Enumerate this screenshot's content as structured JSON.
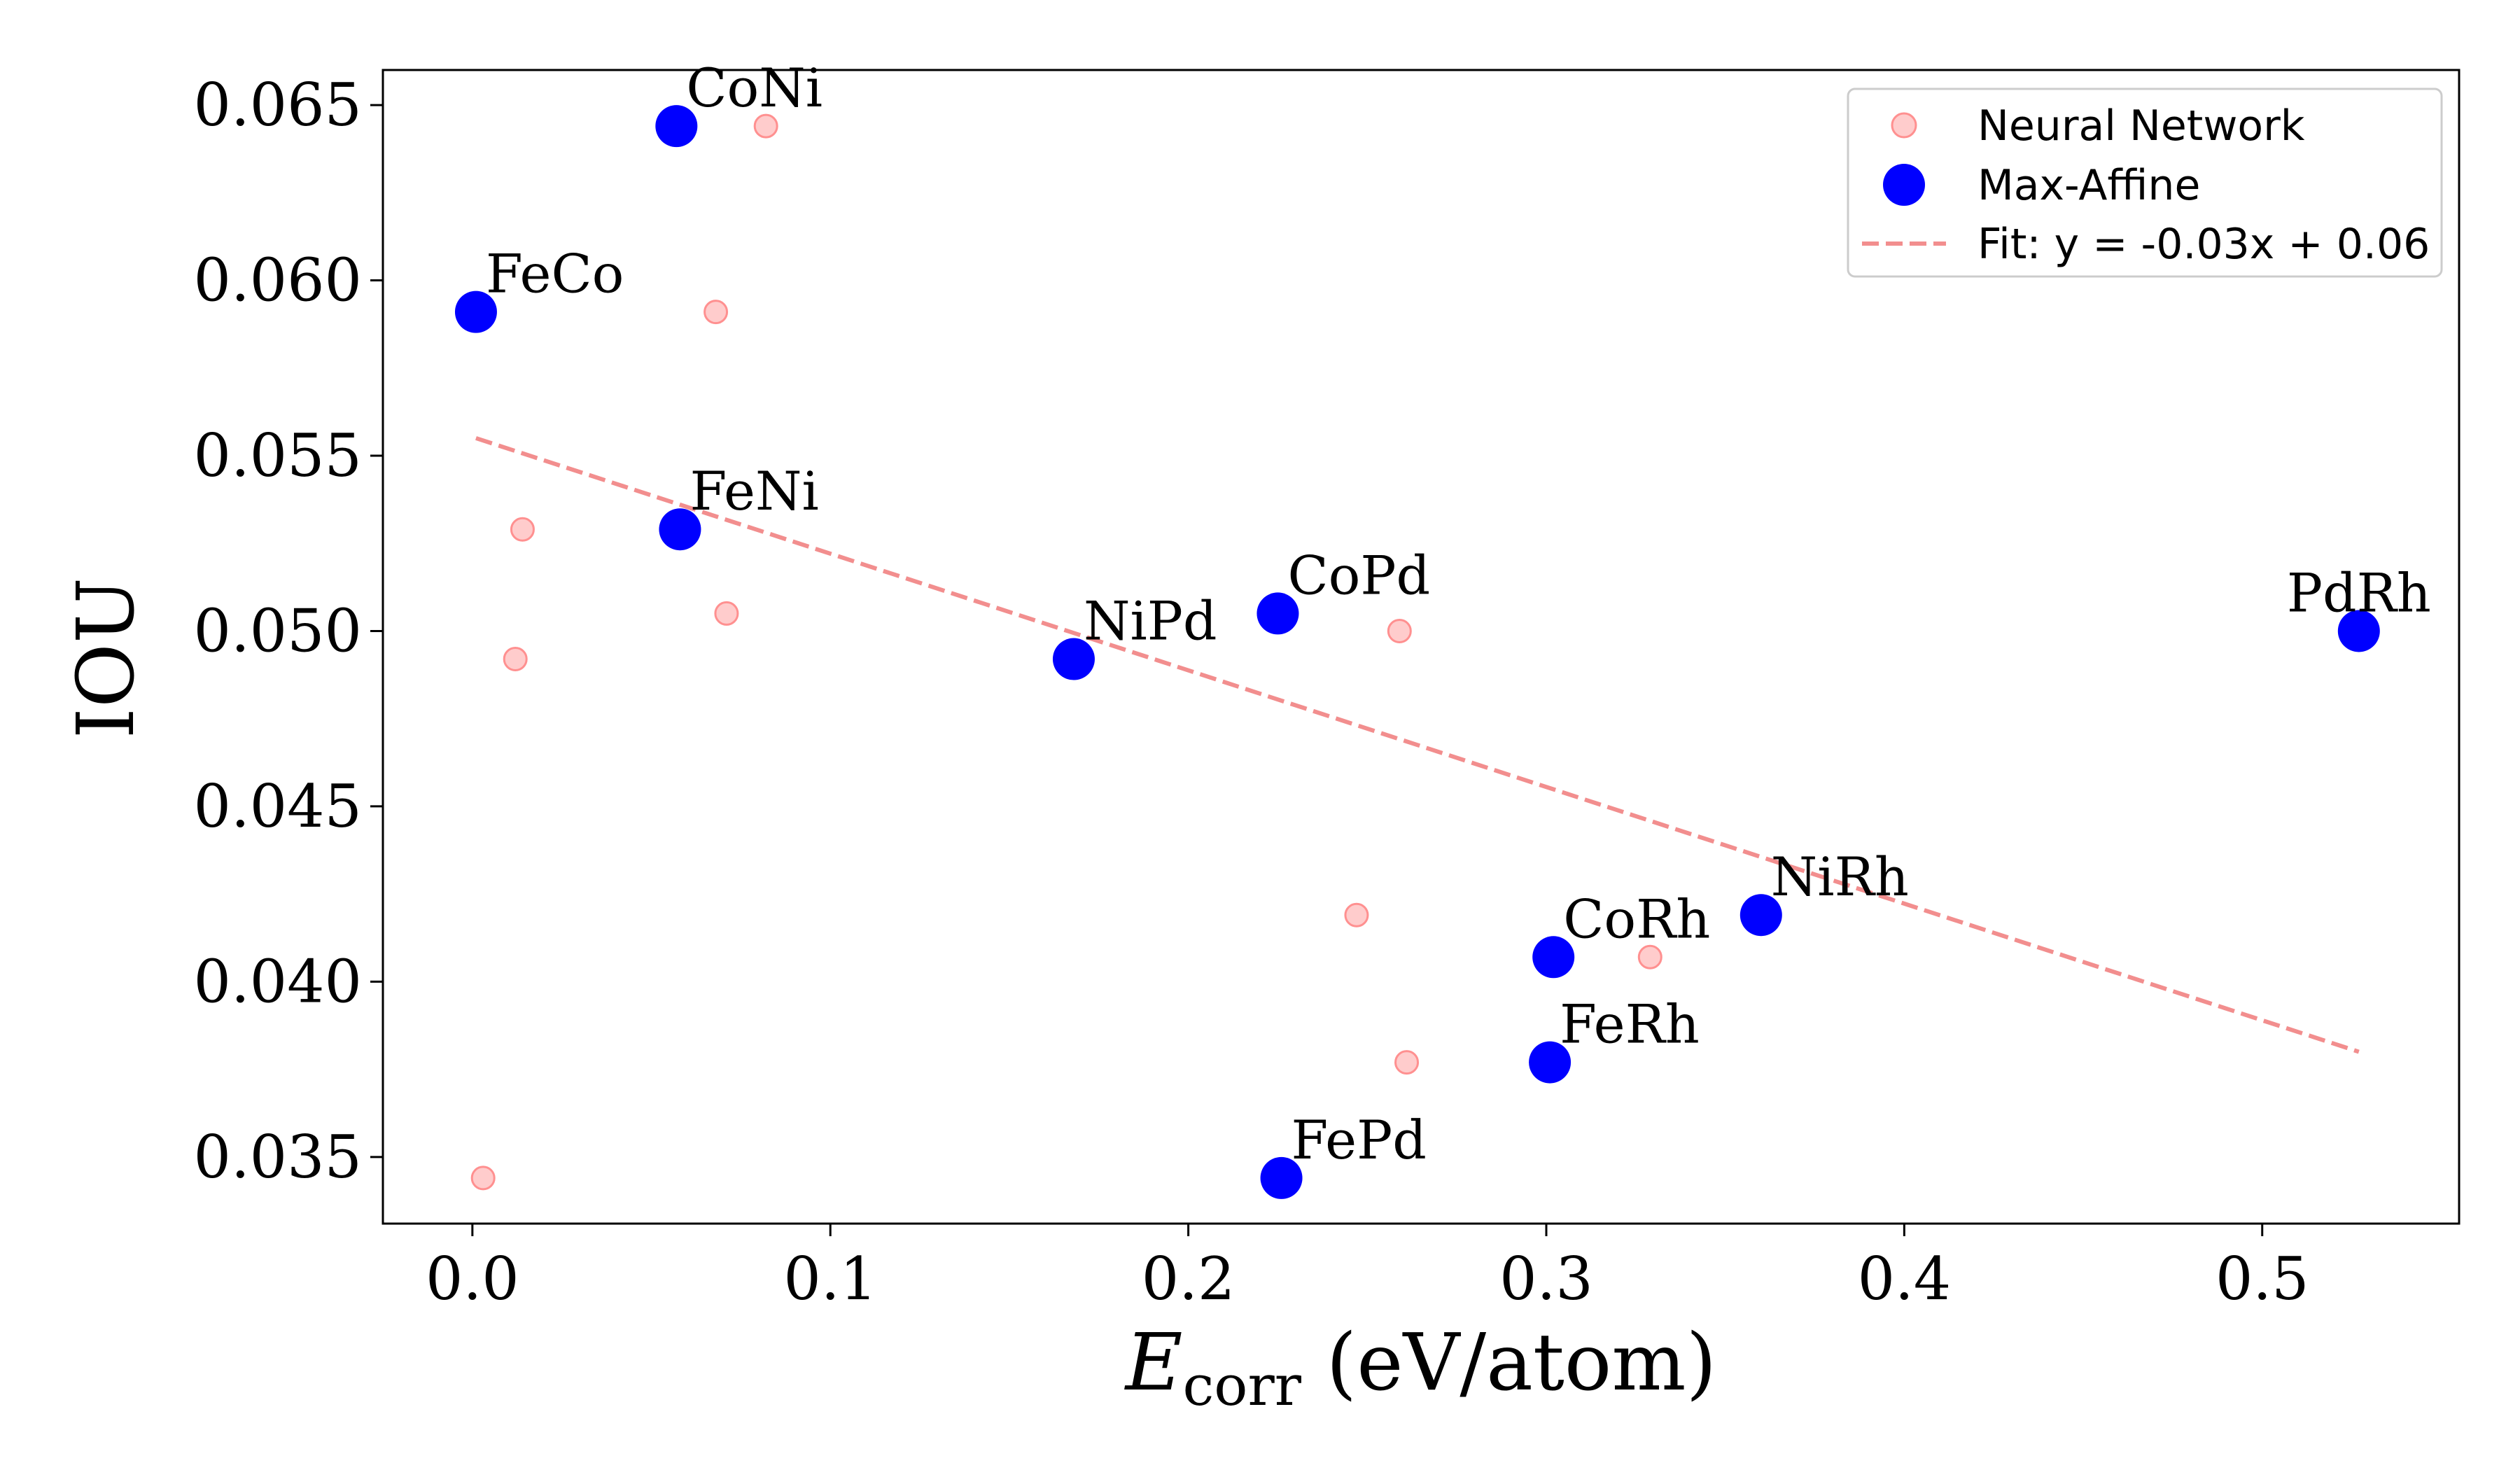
{
  "chart_data": {
    "type": "scatter",
    "xlabel": "E",
    "xlabel_sub": "corr",
    "xlabel_unit": " (eV/atom)",
    "ylabel": "IOU",
    "xlim": [
      -0.025,
      0.555
    ],
    "ylim": [
      0.0331,
      0.066
    ],
    "xticks": [
      0.0,
      0.1,
      0.2,
      0.3,
      0.4,
      0.5
    ],
    "xtick_labels": [
      "0.0",
      "0.1",
      "0.2",
      "0.3",
      "0.4",
      "0.5"
    ],
    "yticks": [
      0.035,
      0.04,
      0.045,
      0.05,
      0.055,
      0.06,
      0.065
    ],
    "ytick_labels": [
      "0.035",
      "0.040",
      "0.045",
      "0.050",
      "0.055",
      "0.060",
      "0.065"
    ],
    "grid": false,
    "legend_position": "top-right",
    "series": [
      {
        "name": "Neural Network",
        "color": "#ffb0b0",
        "points": [
          {
            "x": 0.003,
            "y": 0.0344
          },
          {
            "x": 0.012,
            "y": 0.0492
          },
          {
            "x": 0.014,
            "y": 0.0529
          },
          {
            "x": 0.068,
            "y": 0.0591
          },
          {
            "x": 0.071,
            "y": 0.0505
          },
          {
            "x": 0.082,
            "y": 0.0644
          },
          {
            "x": 0.247,
            "y": 0.0419
          },
          {
            "x": 0.259,
            "y": 0.05
          },
          {
            "x": 0.261,
            "y": 0.0377
          },
          {
            "x": 0.329,
            "y": 0.0407
          }
        ]
      },
      {
        "name": "Max-Affine",
        "color": "#0000ff",
        "points": [
          {
            "x": 0.001,
            "y": 0.0591,
            "label": "FeCo"
          },
          {
            "x": 0.057,
            "y": 0.0644,
            "label": "CoNi"
          },
          {
            "x": 0.058,
            "y": 0.0529,
            "label": "FeNi"
          },
          {
            "x": 0.168,
            "y": 0.0492,
            "label": "NiPd"
          },
          {
            "x": 0.225,
            "y": 0.0505,
            "label": "CoPd"
          },
          {
            "x": 0.226,
            "y": 0.0344,
            "label": "FePd"
          },
          {
            "x": 0.301,
            "y": 0.0377,
            "label": "FeRh"
          },
          {
            "x": 0.302,
            "y": 0.0407,
            "label": "CoRh"
          },
          {
            "x": 0.36,
            "y": 0.0419,
            "label": "NiRh"
          },
          {
            "x": 0.527,
            "y": 0.05,
            "label": "PdRh"
          }
        ]
      }
    ],
    "fit": {
      "name": "Fit: y = -0.03x + 0.06",
      "color": "#f28e8e",
      "x": [
        0.001,
        0.527
      ],
      "y": [
        0.0555,
        0.038
      ]
    }
  }
}
